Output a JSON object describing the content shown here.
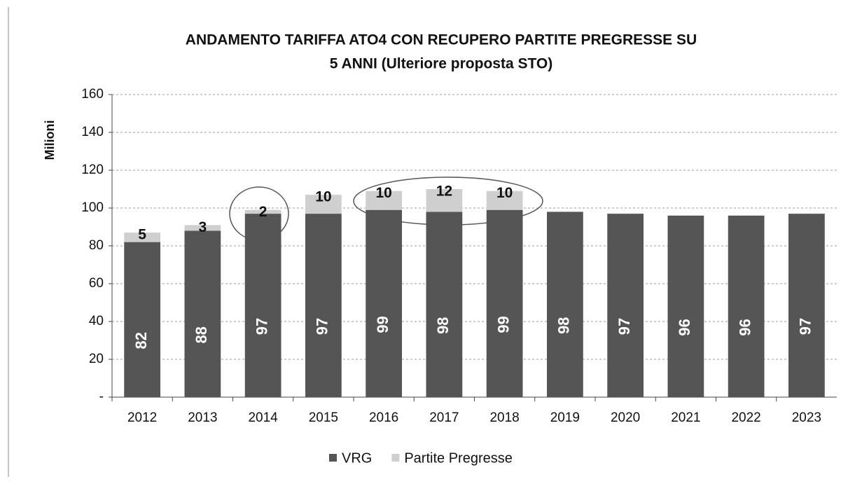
{
  "chart_data": {
    "type": "stacked_bar",
    "title": [
      "ANDAMENTO TARIFFA ATO4 CON RECUPERO PARTITE PREGRESSE SU",
      "5 ANNI (Ulteriore proposta STO)"
    ],
    "y_label": "Milioni",
    "categories": [
      "2012",
      "2013",
      "2014",
      "2015",
      "2016",
      "2017",
      "2018",
      "2019",
      "2020",
      "2021",
      "2022",
      "2023"
    ],
    "series": [
      {
        "name": "VRG",
        "color": "#555555",
        "values": [
          82,
          88,
          97,
          97,
          99,
          98,
          99,
          98,
          97,
          96,
          96,
          97
        ]
      },
      {
        "name": "Partite Pregresse",
        "color": "#cfcfcf",
        "values": [
          5,
          3,
          2,
          10,
          10,
          12,
          10,
          null,
          null,
          null,
          null,
          null
        ]
      }
    ],
    "ylim": [
      0,
      160
    ],
    "yticks": [
      {
        "value": 0,
        "label": "-"
      },
      20,
      40,
      60,
      80,
      100,
      120,
      140,
      160
    ],
    "grid": true,
    "legend": "bottom"
  }
}
